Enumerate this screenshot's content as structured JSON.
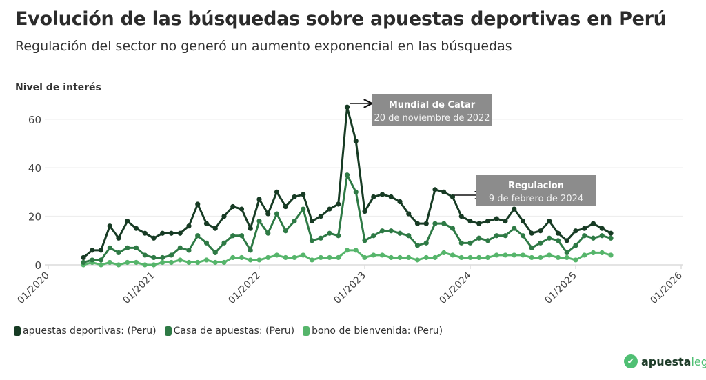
{
  "header": {
    "title": "Evolución de las búsquedas sobre apuestas deportivas en Perú",
    "subtitle": "Regulación del sector no generó un aumento exponencial en las búsquedas"
  },
  "logo": {
    "part1": "apuesta",
    "part2": "legal",
    "color1": "#1f3d2a",
    "color2": "#4fbf73"
  },
  "chart_data": {
    "type": "line",
    "title": "Evolución de las búsquedas sobre apuestas deportivas en Perú",
    "subtitle": "Regulación del sector no generó un aumento exponencial en las búsquedas",
    "ylabel": "Nivel de interés",
    "xlabel": "",
    "ylim": [
      0,
      65
    ],
    "yticks": [
      0,
      20,
      40,
      60
    ],
    "xlim": [
      "2020-01",
      "2026-01"
    ],
    "xticks": [
      "01/2020",
      "01/2021",
      "01/2022",
      "01/2023",
      "01/2024",
      "01/2025",
      "01/2026"
    ],
    "grid": true,
    "legend_position": "bottom-left",
    "x": [
      "2020-05",
      "2020-06",
      "2020-07",
      "2020-08",
      "2020-09",
      "2020-10",
      "2020-11",
      "2020-12",
      "2021-01",
      "2021-02",
      "2021-03",
      "2021-04",
      "2021-05",
      "2021-06",
      "2021-07",
      "2021-08",
      "2021-09",
      "2021-10",
      "2021-11",
      "2021-12",
      "2022-01",
      "2022-02",
      "2022-03",
      "2022-04",
      "2022-05",
      "2022-06",
      "2022-07",
      "2022-08",
      "2022-09",
      "2022-10",
      "2022-11",
      "2022-12",
      "2023-01",
      "2023-02",
      "2023-03",
      "2023-04",
      "2023-05",
      "2023-06",
      "2023-07",
      "2023-08",
      "2023-09",
      "2023-10",
      "2023-11",
      "2023-12",
      "2024-01",
      "2024-02",
      "2024-03",
      "2024-04",
      "2024-05",
      "2024-06",
      "2024-07",
      "2024-08",
      "2024-09",
      "2024-10",
      "2024-11",
      "2024-12",
      "2025-01",
      "2025-02",
      "2025-03",
      "2025-04",
      "2025-05"
    ],
    "series": [
      {
        "name": "apuestas deportivas: (Peru)",
        "color": "#173b24",
        "values": [
          3,
          6,
          6,
          16,
          11,
          18,
          15,
          13,
          11,
          13,
          13,
          13,
          16,
          25,
          17,
          15,
          20,
          24,
          23,
          15,
          27,
          21,
          30,
          24,
          28,
          29,
          18,
          20,
          23,
          25,
          65,
          51,
          22,
          28,
          29,
          28,
          26,
          21,
          17,
          17,
          31,
          30,
          28,
          20,
          18,
          17,
          18,
          19,
          18,
          23,
          18,
          13,
          14,
          18,
          13,
          10,
          14,
          15,
          17,
          15,
          13
        ]
      },
      {
        "name": "Casa de apuestas: (Peru)",
        "color": "#2e7a45",
        "values": [
          1,
          2,
          2,
          7,
          5,
          7,
          7,
          4,
          3,
          3,
          4,
          7,
          6,
          12,
          9,
          5,
          9,
          12,
          12,
          6,
          18,
          13,
          21,
          14,
          18,
          23,
          10,
          11,
          13,
          12,
          37,
          30,
          10,
          12,
          14,
          14,
          13,
          12,
          8,
          9,
          17,
          17,
          15,
          9,
          9,
          11,
          10,
          12,
          12,
          15,
          12,
          7,
          9,
          11,
          10,
          5,
          8,
          12,
          11,
          12,
          11
        ]
      },
      {
        "name": "bono de bienvenida: (Peru)",
        "color": "#56b56b",
        "values": [
          0,
          1,
          0,
          1,
          0,
          1,
          1,
          0,
          0,
          1,
          1,
          2,
          1,
          1,
          2,
          1,
          1,
          3,
          3,
          2,
          2,
          3,
          4,
          3,
          3,
          4,
          2,
          3,
          3,
          3,
          6,
          6,
          3,
          4,
          4,
          3,
          3,
          3,
          2,
          3,
          3,
          5,
          4,
          3,
          3,
          3,
          3,
          4,
          4,
          4,
          4,
          3,
          3,
          4,
          3,
          3,
          2,
          4,
          5,
          5,
          4
        ]
      }
    ],
    "annotations": [
      {
        "title": "Mundial de Catar",
        "text": "20 de noviembre de 2022",
        "x": "2022-11",
        "y": 65
      },
      {
        "title": "Regulacion",
        "text": "9 de febrero de 2024",
        "x": "2024-02",
        "y": 28
      }
    ]
  }
}
